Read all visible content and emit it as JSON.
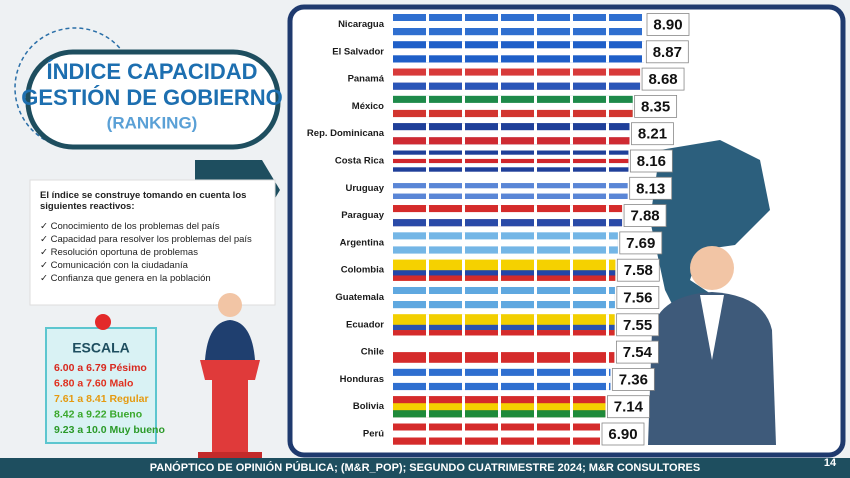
{
  "chart_data": {
    "type": "bar",
    "orientation": "horizontal",
    "categories": [
      "Nicaragua",
      "El Salvador",
      "Panamá",
      "México",
      "Rep. Dominicana",
      "Costa Rica",
      "Uruguay",
      "Paraguay",
      "Argentina",
      "Colombia",
      "Guatemala",
      "Ecuador",
      "Chile",
      "Honduras",
      "Bolivia",
      "Perú"
    ],
    "values": [
      8.9,
      8.87,
      8.68,
      8.35,
      8.21,
      8.16,
      8.13,
      7.88,
      7.69,
      7.58,
      7.56,
      7.55,
      7.54,
      7.36,
      7.14,
      6.9
    ],
    "value_labels": [
      "8.90",
      "8.87",
      "8.68",
      "8.35",
      "8.21",
      "8.16",
      "8.13",
      "7.88",
      "7.69",
      "7.58",
      "7.56",
      "7.55",
      "7.54",
      "7.36",
      "7.14",
      "6.90"
    ],
    "colors": [
      [
        "#2f6fd0",
        "#ffffff",
        "#2f6fd0"
      ],
      [
        "#1f5fc8",
        "#ffffff",
        "#1f5fc8"
      ],
      [
        "#d83a3a",
        "#ffffff",
        "#2a55b8"
      ],
      [
        "#1e8a4a",
        "#ffffff",
        "#d2352f"
      ],
      [
        "#1f3f99",
        "#ffffff",
        "#cf2a32"
      ],
      [
        "#1f3f99",
        "#ffffff",
        "#d0262c",
        "#ffffff",
        "#1f3f99"
      ],
      [
        "#ffffff",
        "#5a86d6",
        "#ffffff",
        "#5a86d6"
      ],
      [
        "#d52b2b",
        "#ffffff",
        "#2a4aa8"
      ],
      [
        "#74b6e6",
        "#ffffff",
        "#74b6e6"
      ],
      [
        "#f5d100",
        "#f5d100",
        "#2346a8",
        "#d52b2b"
      ],
      [
        "#5fa8e0",
        "#ffffff",
        "#5fa8e0"
      ],
      [
        "#f2cf00",
        "#f2cf00",
        "#2a52b0",
        "#d52b2b"
      ],
      [
        "#ffffff",
        "#d52b2b"
      ],
      [
        "#2f6fd0",
        "#ffffff",
        "#2f6fd0"
      ],
      [
        "#d52b2b",
        "#f5d100",
        "#1f8a3a"
      ],
      [
        "#d52b2b",
        "#ffffff",
        "#d52b2b"
      ]
    ]
  },
  "header": {
    "title_1": "ÍNDICE CAPACIDAD",
    "title_2": "GESTIÓN DE GOBIERNO",
    "subtitle": "(RANKING)"
  },
  "notes": {
    "intro": "El índice se construye tomando en cuenta los siguientes reactivos:",
    "items": [
      "Conocimiento de los problemas del país",
      "Capacidad para resolver los problemas del país",
      "Resolución oportuna de problemas",
      "Comunicación con la ciudadanía",
      "Confianza que genera en la población"
    ]
  },
  "scale": {
    "title": "ESCALA",
    "entries": [
      {
        "text": "6.00 a 6.79 Pésimo",
        "color": "#d8281e"
      },
      {
        "text": "6.80 a 7.60 Malo",
        "color": "#e0301e"
      },
      {
        "text": "7.61 a 8.41 Regular",
        "color": "#e59a10"
      },
      {
        "text": "8.42 a 9.22 Bueno",
        "color": "#3aa82c"
      },
      {
        "text": "9.23 a 10.0 Muy bueno",
        "color": "#2a9a28"
      }
    ]
  },
  "footer": {
    "source": "PANÓPTICO DE OPINIÓN PÚBLICA; (M&R_POP); SEGUNDO CUATRIMESTRE 2024; M&R CONSULTORES",
    "page": "14"
  }
}
